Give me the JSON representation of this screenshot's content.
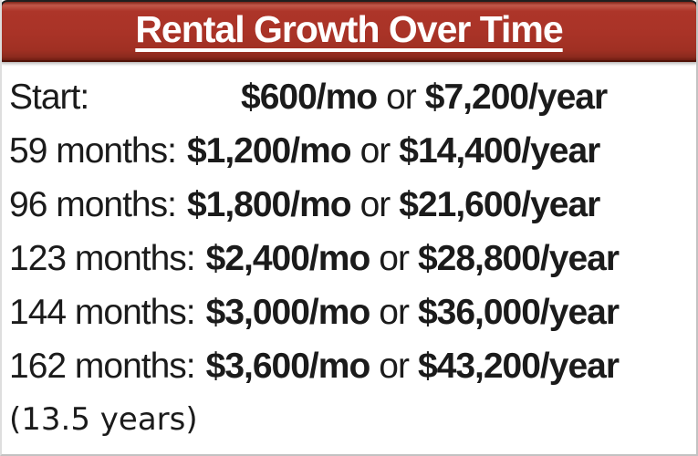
{
  "header": {
    "title": "Rental Growth Over Time"
  },
  "colors": {
    "header_red": "#A93327",
    "header_highlight": "#C2584A",
    "header_shadow_edge": "#6F1D12",
    "header_outline": "#1F1F1F",
    "title_text": "#FFFFFF",
    "body_text": "#1B1B1B",
    "box_border": "#C2C2C2",
    "background": "#FFFFFF"
  },
  "conjunction": "or",
  "rows": [
    {
      "label": "Start:",
      "monthly": "$600/mo",
      "yearly": "$7,200/year"
    },
    {
      "label": "59 months:",
      "monthly": "$1,200/mo",
      "yearly": "$14,400/year"
    },
    {
      "label": "96 months:",
      "monthly": "$1,800/mo",
      "yearly": "$21,600/year"
    },
    {
      "label": "123 months:",
      "monthly": "$2,400/mo",
      "yearly": "$28,800/year"
    },
    {
      "label": "144 months:",
      "monthly": "$3,000/mo",
      "yearly": "$36,000/year"
    },
    {
      "label": "162 months:",
      "monthly": "$3,600/mo",
      "yearly": "$43,200/year"
    }
  ],
  "footnote": "(13.5 years)"
}
